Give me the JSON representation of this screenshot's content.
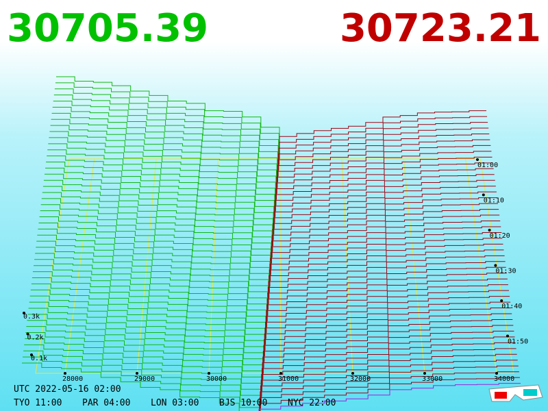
{
  "header": {
    "bid": "30705.39",
    "ask": "30723.21"
  },
  "price_axis": [
    "28000",
    "29000",
    "30000",
    "31000",
    "32000",
    "33000",
    "34000"
  ],
  "time_axis": [
    "01:00",
    "01:10",
    "01:20",
    "01:30",
    "01:40",
    "01:50"
  ],
  "depth_axis": [
    "0.3k",
    "0.2k",
    "0.1k"
  ],
  "footer": {
    "utc": "UTC 2022-05-16 02:00",
    "zones": [
      "TYO 11:00",
      "PAR 04:00",
      "LON 03:00",
      "BJS 10:00",
      "NYC 22:00"
    ]
  }
}
